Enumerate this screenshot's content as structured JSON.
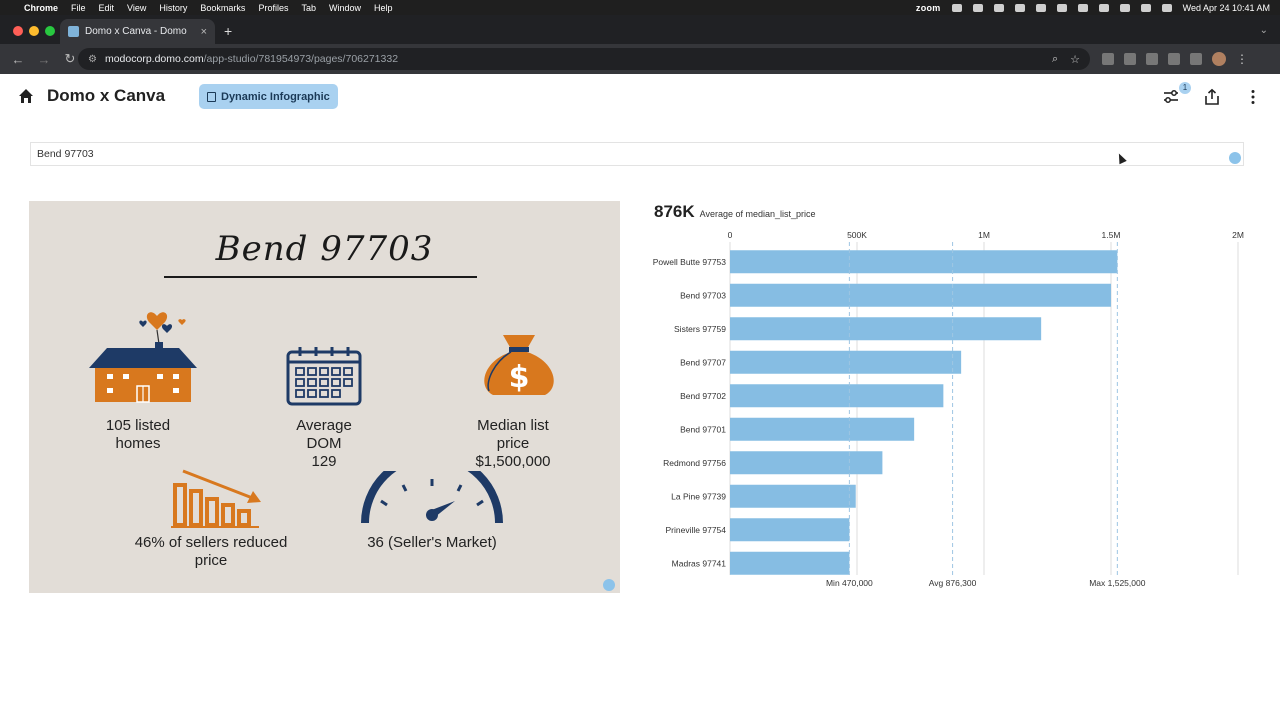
{
  "menubar": {
    "app": "Chrome",
    "items": [
      "File",
      "Edit",
      "View",
      "History",
      "Bookmarks",
      "Profiles",
      "Tab",
      "Window",
      "Help"
    ],
    "zoom_label": "zoom",
    "datetime": "Wed Apr 24  10:41 AM"
  },
  "browser": {
    "tab_title": "Domo x Canva - Domo",
    "url_host": "modocorp.domo.com",
    "url_path": "/app-studio/781954973/pages/706271332"
  },
  "page": {
    "title": "Domo x Canva",
    "badge": "Dynamic Infographic",
    "filter_count": "1",
    "filter_value": "Bend 97703"
  },
  "infographic": {
    "title": "Bend 97703",
    "stat_listed": "105 listed homes",
    "stat_dom_line1": "Average",
    "stat_dom_line2": "DOM",
    "stat_dom_value": "129",
    "stat_price_line1": "Median list",
    "stat_price_line2": "price",
    "stat_price_value": "$1,500,000",
    "stat_reduced": "46% of sellers reduced price",
    "stat_market": "36 (Seller's Market)",
    "colors": {
      "orange": "#d8781e",
      "navy": "#1e3a66",
      "background": "#e2ddd7"
    }
  },
  "chart_data": {
    "type": "bar",
    "orientation": "horizontal",
    "summary_value": "876K",
    "summary_label": "Average of median_list_price",
    "categories": [
      "Powell Butte 97753",
      "Bend 97703",
      "Sisters 97759",
      "Bend 97707",
      "Bend 97702",
      "Bend 97701",
      "Redmond 97756",
      "La Pine 97739",
      "Prineville 97754",
      "Madras 97741"
    ],
    "values": [
      1525000,
      1500000,
      1225000,
      910000,
      840000,
      725000,
      600000,
      495000,
      470000,
      470000
    ],
    "xlim": [
      0,
      2000000
    ],
    "x_ticks": [
      0,
      500000,
      1000000,
      1500000,
      2000000
    ],
    "x_tick_labels": [
      "0",
      "500K",
      "1M",
      "1.5M",
      "2M"
    ],
    "reference_lines": [
      {
        "label": "Min 470,000",
        "value": 470000
      },
      {
        "label": "Avg 876,300",
        "value": 876300
      },
      {
        "label": "Max 1,525,000",
        "value": 1525000
      }
    ],
    "bar_color": "#86bde3",
    "grid": true
  }
}
